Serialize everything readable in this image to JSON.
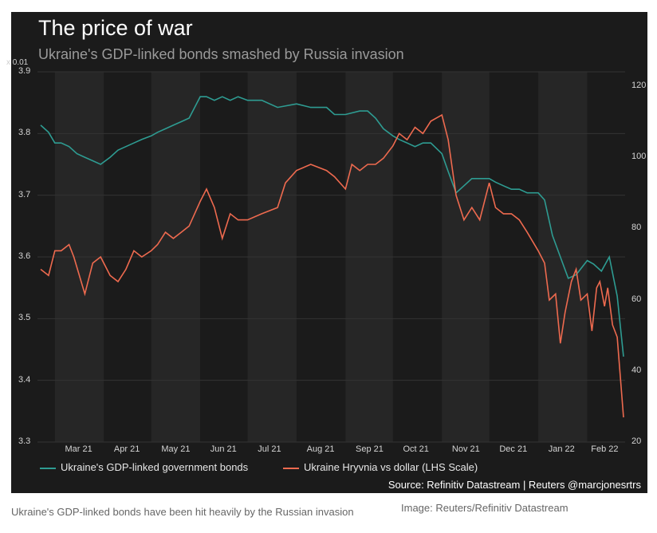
{
  "chart_data": {
    "type": "line",
    "title": "The price of war",
    "subtitle": "Ukraine's GDP-linked bonds smashed by Russia invasion",
    "left_axis_multiplier": "x 0.01",
    "x_tick_labels": [
      "Mar 21",
      "Apr 21",
      "May 21",
      "Jun 21",
      "Jul 21",
      "Aug 21",
      "Sep 21",
      "Oct 21",
      "Nov 21",
      "Dec 21",
      "Jan 22",
      "Feb 22"
    ],
    "left_axis_ticks": [
      "3.9",
      "3.8",
      "3.7",
      "3.6",
      "3.5",
      "3.4",
      "3.3"
    ],
    "right_axis_ticks": [
      "120",
      "100",
      "80",
      "60",
      "40",
      "20"
    ],
    "ylim_left": [
      3.3,
      3.9
    ],
    "ylim_right": [
      20,
      124
    ],
    "grid": "alternating vertical bands by month",
    "legend_position": "bottom",
    "series": [
      {
        "name": "Ukraine's GDP-linked government bonds",
        "axis": "right",
        "color": "#2e9c92",
        "x": [
          "2021-02-20",
          "2021-02-25",
          "2021-03-01",
          "2021-03-05",
          "2021-03-10",
          "2021-03-15",
          "2021-03-20",
          "2021-03-25",
          "2021-03-30",
          "2021-04-05",
          "2021-04-10",
          "2021-04-15",
          "2021-04-20",
          "2021-04-25",
          "2021-05-01",
          "2021-05-05",
          "2021-05-10",
          "2021-05-15",
          "2021-05-20",
          "2021-05-25",
          "2021-06-01",
          "2021-06-05",
          "2021-06-10",
          "2021-06-15",
          "2021-06-20",
          "2021-06-25",
          "2021-07-01",
          "2021-07-10",
          "2021-07-20",
          "2021-08-01",
          "2021-08-10",
          "2021-08-20",
          "2021-08-25",
          "2021-09-01",
          "2021-09-10",
          "2021-09-15",
          "2021-09-20",
          "2021-09-25",
          "2021-10-01",
          "2021-10-05",
          "2021-10-10",
          "2021-10-15",
          "2021-10-20",
          "2021-10-25",
          "2021-11-01",
          "2021-11-05",
          "2021-11-10",
          "2021-11-15",
          "2021-11-20",
          "2021-11-25",
          "2021-12-01",
          "2021-12-05",
          "2021-12-10",
          "2021-12-15",
          "2021-12-20",
          "2021-12-25",
          "2022-01-01",
          "2022-01-05",
          "2022-01-10",
          "2022-01-15",
          "2022-01-20",
          "2022-01-25",
          "2022-02-01",
          "2022-02-05",
          "2022-02-10",
          "2022-02-15",
          "2022-02-20",
          "2022-02-24"
        ],
        "values": [
          109,
          107,
          104,
          104,
          103,
          101,
          100,
          99,
          98,
          100,
          102,
          103,
          104,
          105,
          106,
          107,
          108,
          109,
          110,
          111,
          117,
          117,
          116,
          117,
          116,
          117,
          116,
          116,
          114,
          115,
          114,
          114,
          112,
          112,
          113,
          113,
          111,
          108,
          106,
          105,
          104,
          103,
          104,
          104,
          101,
          96,
          90,
          92,
          94,
          94,
          94,
          93,
          92,
          91,
          91,
          90,
          90,
          88,
          78,
          72,
          66,
          67,
          71,
          70,
          68,
          72,
          61,
          44
        ]
      },
      {
        "name": "Ukraine Hryvnia vs dollar (LHS Scale)",
        "axis": "left",
        "color": "#ee6a4f",
        "x": [
          "2021-02-20",
          "2021-02-25",
          "2021-03-01",
          "2021-03-05",
          "2021-03-10",
          "2021-03-13",
          "2021-03-20",
          "2021-03-25",
          "2021-03-30",
          "2021-04-05",
          "2021-04-10",
          "2021-04-15",
          "2021-04-20",
          "2021-04-25",
          "2021-05-01",
          "2021-05-05",
          "2021-05-10",
          "2021-05-15",
          "2021-05-20",
          "2021-05-25",
          "2021-06-01",
          "2021-06-05",
          "2021-06-10",
          "2021-06-15",
          "2021-06-20",
          "2021-06-25",
          "2021-07-01",
          "2021-07-10",
          "2021-07-20",
          "2021-07-25",
          "2021-08-01",
          "2021-08-10",
          "2021-08-20",
          "2021-08-25",
          "2021-09-01",
          "2021-09-05",
          "2021-09-10",
          "2021-09-15",
          "2021-09-20",
          "2021-09-25",
          "2021-10-01",
          "2021-10-05",
          "2021-10-10",
          "2021-10-15",
          "2021-10-20",
          "2021-10-25",
          "2021-11-01",
          "2021-11-05",
          "2021-11-10",
          "2021-11-15",
          "2021-11-20",
          "2021-11-25",
          "2021-12-01",
          "2021-12-05",
          "2021-12-10",
          "2021-12-15",
          "2021-12-20",
          "2021-12-25",
          "2022-01-01",
          "2022-01-05",
          "2022-01-08",
          "2022-01-12",
          "2022-01-15",
          "2022-01-18",
          "2022-01-22",
          "2022-01-25",
          "2022-01-28",
          "2022-02-01",
          "2022-02-04",
          "2022-02-07",
          "2022-02-09",
          "2022-02-12",
          "2022-02-14",
          "2022-02-17",
          "2022-02-20",
          "2022-02-24"
        ],
        "values": [
          3.58,
          3.57,
          3.61,
          3.61,
          3.62,
          3.6,
          3.54,
          3.59,
          3.6,
          3.57,
          3.56,
          3.58,
          3.61,
          3.6,
          3.61,
          3.62,
          3.64,
          3.63,
          3.64,
          3.65,
          3.69,
          3.71,
          3.68,
          3.63,
          3.67,
          3.66,
          3.66,
          3.67,
          3.68,
          3.72,
          3.74,
          3.75,
          3.74,
          3.73,
          3.71,
          3.75,
          3.74,
          3.75,
          3.75,
          3.76,
          3.78,
          3.8,
          3.79,
          3.81,
          3.8,
          3.82,
          3.83,
          3.79,
          3.7,
          3.66,
          3.68,
          3.66,
          3.72,
          3.68,
          3.67,
          3.67,
          3.66,
          3.64,
          3.61,
          3.59,
          3.53,
          3.54,
          3.46,
          3.51,
          3.56,
          3.58,
          3.53,
          3.54,
          3.48,
          3.55,
          3.56,
          3.52,
          3.55,
          3.49,
          3.47,
          3.34
        ]
      }
    ]
  },
  "footer": {
    "source": "Source: Refinitiv Datastream | Reuters @marcjonesrtrs",
    "caption": "Ukraine's GDP-linked bonds have been hit heavily by the Russian invasion",
    "credit": "Image: Reuters/Refinitiv Datastream"
  }
}
